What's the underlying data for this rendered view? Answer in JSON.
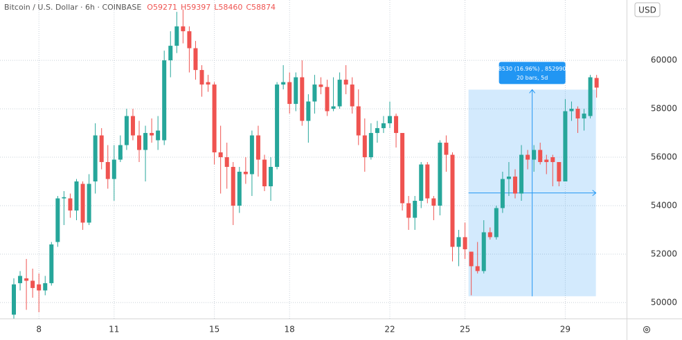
{
  "chart_data": {
    "type": "candlestick",
    "title": "Bitcoin / U.S. Dollar · 6h · COINBASE",
    "readout": [
      {
        "value": 59271,
        "label": "O59271"
      },
      {
        "value": 59397,
        "label": "H59397"
      },
      {
        "value": 58460,
        "label": "L58460"
      },
      {
        "value": 58874,
        "label": "C58874"
      }
    ],
    "currency": "USD",
    "categories": [
      null,
      null,
      null,
      null,
      "8",
      null,
      null,
      null,
      null,
      null,
      null,
      null,
      null,
      null,
      null,
      null,
      "11",
      null,
      null,
      null,
      null,
      null,
      null,
      null,
      null,
      null,
      null,
      null,
      null,
      null,
      null,
      null,
      "15",
      null,
      null,
      null,
      null,
      null,
      null,
      null,
      null,
      null,
      null,
      null,
      "18",
      null,
      null,
      null,
      null,
      null,
      null,
      null,
      null,
      null,
      null,
      null,
      null,
      null,
      null,
      null,
      "22",
      null,
      null,
      null,
      null,
      null,
      null,
      null,
      null,
      null,
      null,
      null,
      "25",
      null,
      null,
      null,
      null,
      null,
      null,
      null,
      null,
      null,
      null,
      null,
      null,
      null,
      null,
      null,
      "29",
      null,
      null,
      null,
      null,
      null
    ],
    "open": [
      49500,
      50800,
      51000,
      50900,
      50750,
      50500,
      50800,
      52500,
      54300,
      54300,
      53800,
      54900,
      53300,
      55000,
      56900,
      55800,
      55100,
      55900,
      56500,
      57700,
      56900,
      56300,
      57000,
      56700,
      56700,
      60000,
      60600,
      61400,
      61200,
      60500,
      59600,
      59100,
      59000,
      56200,
      56000,
      55600,
      54000,
      55400,
      55300,
      56900,
      55900,
      54800,
      55600,
      59000,
      59100,
      58200,
      59300,
      57500,
      58300,
      59000,
      58900,
      58000,
      58100,
      59200,
      59000,
      58100,
      56900,
      56000,
      57000,
      57200,
      57400,
      57700,
      57000,
      54100,
      53500,
      54200,
      55700,
      54300,
      54000,
      56600,
      56100,
      52300,
      52700,
      52100,
      51500,
      51300,
      52900,
      52700,
      53900,
      55100,
      55200,
      54500,
      56100,
      55900,
      56300,
      55900,
      56000,
      55800,
      55000,
      57900,
      58000,
      57600,
      57700,
      59271
    ],
    "high": [
      51000,
      51300,
      51800,
      51400,
      51200,
      51100,
      52500,
      54400,
      54600,
      54500,
      55100,
      55000,
      55300,
      57400,
      57200,
      56500,
      56500,
      56900,
      58000,
      58000,
      57500,
      57300,
      57600,
      57700,
      60400,
      61200,
      62000,
      62100,
      61400,
      60800,
      59800,
      59400,
      59100,
      57300,
      56600,
      55800,
      55600,
      56000,
      57100,
      57300,
      56100,
      56000,
      59100,
      59800,
      59500,
      59500,
      60000,
      58600,
      59400,
      59300,
      59200,
      59300,
      59500,
      59800,
      59300,
      58800,
      57600,
      57400,
      57500,
      57700,
      58300,
      57800,
      57000,
      54400,
      54400,
      55800,
      55800,
      54400,
      56700,
      56900,
      56200,
      53000,
      53300,
      52100,
      52500,
      53400,
      53100,
      54000,
      55400,
      55800,
      55500,
      56500,
      56300,
      56500,
      56600,
      56100,
      56100,
      55800,
      58400,
      58300,
      58100,
      58000,
      59400,
      59397
    ],
    "low": [
      49000,
      50500,
      49700,
      50200,
      49600,
      50300,
      50700,
      52300,
      53200,
      53500,
      53400,
      53000,
      53200,
      54500,
      55500,
      54700,
      54200,
      55800,
      56300,
      56700,
      55800,
      55000,
      56600,
      56300,
      56500,
      59300,
      60300,
      60700,
      59500,
      59200,
      58500,
      58700,
      55700,
      54500,
      54700,
      53200,
      53700,
      54900,
      54400,
      55200,
      54600,
      54200,
      55500,
      58800,
      57800,
      57900,
      57300,
      56600,
      57800,
      58600,
      57700,
      57900,
      58000,
      58600,
      57800,
      56500,
      55400,
      55900,
      56600,
      57000,
      57200,
      56400,
      53800,
      53000,
      53000,
      53900,
      54100,
      53400,
      53600,
      55400,
      51700,
      51500,
      51800,
      50300,
      51200,
      51200,
      52600,
      52600,
      53700,
      54400,
      54300,
      54200,
      55500,
      55400,
      55700,
      55300,
      54800,
      54800,
      55000,
      57500,
      57000,
      57100,
      57600,
      58460
    ],
    "close": [
      50750,
      51100,
      50900,
      50600,
      50500,
      50800,
      52400,
      54300,
      54350,
      53800,
      55000,
      53300,
      54900,
      56900,
      55800,
      55100,
      55900,
      56500,
      57700,
      56900,
      56300,
      57000,
      56900,
      57100,
      60000,
      60600,
      61400,
      61200,
      60500,
      59600,
      59000,
      59000,
      56200,
      56000,
      55600,
      54000,
      55400,
      55300,
      56900,
      55900,
      54800,
      55600,
      59000,
      59100,
      58200,
      59300,
      57500,
      58300,
      59000,
      58900,
      57900,
      58100,
      59200,
      59000,
      58100,
      56900,
      56000,
      57000,
      57200,
      57400,
      57700,
      57000,
      54100,
      53500,
      54200,
      55700,
      54300,
      54000,
      56600,
      56100,
      52300,
      52700,
      52200,
      51500,
      51300,
      52900,
      52700,
      53900,
      55100,
      55200,
      54500,
      56100,
      55900,
      56300,
      55800,
      55800,
      55800,
      55000,
      57900,
      58000,
      57600,
      57800,
      59300,
      58874
    ],
    "up_color": "#26a69a",
    "down_color": "#ef5350",
    "ylim": [
      49340,
      62490
    ],
    "yticks": [
      50000,
      52000,
      54000,
      56000,
      58000,
      60000
    ],
    "grid": true,
    "measure": {
      "text": "8530 (16.96%) , 852990",
      "subtext": "20 bars, 5d",
      "x": [
        73,
        93
      ],
      "y": [
        50260,
        58790
      ],
      "color": "#2196f3"
    }
  }
}
